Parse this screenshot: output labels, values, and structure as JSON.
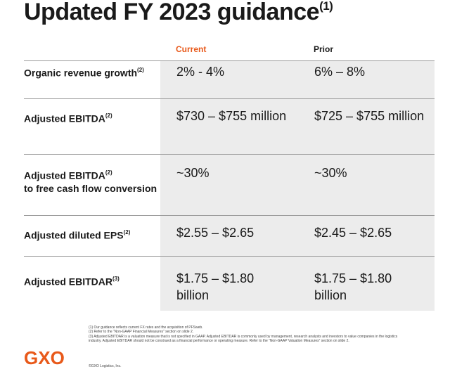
{
  "title": "Updated FY 2023 guidance",
  "title_sup": "(1)",
  "headers": {
    "current": "Current",
    "prior": "Prior"
  },
  "rows": [
    {
      "label": "Organic revenue growth",
      "sup": "(2)",
      "current": "2% - 4%",
      "prior": "6% – 8%"
    },
    {
      "label": "Adjusted EBITDA",
      "sup": "(2)",
      "current": "$730 – $755 million",
      "prior": "$725 – $755 million"
    },
    {
      "label": "Adjusted EBITDA",
      "label_line2": "to free cash flow conversion",
      "sup": "(2)",
      "current": "~30%",
      "prior": "~30%"
    },
    {
      "label": "Adjusted diluted EPS",
      "sup": "(2)",
      "current": "$2.55 – $2.65",
      "prior": "$2.45 – $2.65"
    },
    {
      "label": "Adjusted EBITDAR",
      "sup": "(3)",
      "current": "$1.75 – $1.80 billion",
      "prior": "$1.75 – $1.80 billion"
    }
  ],
  "footnotes": [
    "(1) Our guidance reflects current FX rates and the acquisition of PFSweb.",
    "(2) Refer to the “Non-GAAP Financial Measures” section on slide 2.",
    "(3) Adjusted EBITDAR is a valuation measure that is not specified in GAAP. Adjusted EBITDAR is commonly used by management, research analysts and investors to value companies in the logistics industry. Adjusted EBITDAR should not be construed as a financial performance or operating measure. Refer to the “Non-GAAP Valuation Measures” section on slide 2."
  ],
  "copyright": "©GXO Logistics, Inc.",
  "logo": "GXO",
  "colors": {
    "accent": "#e8591a",
    "band": "#ececec"
  }
}
